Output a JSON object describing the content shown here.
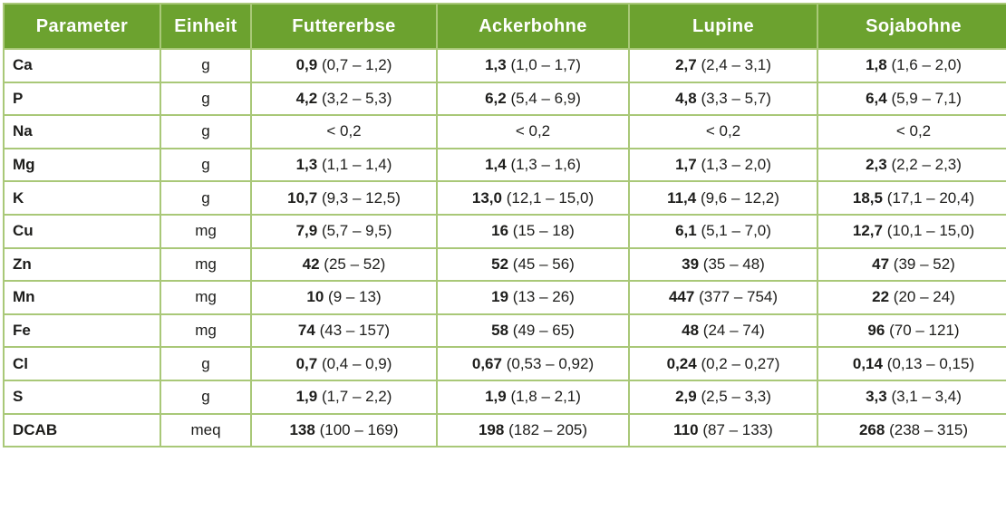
{
  "colors": {
    "header_bg": "#6ca22f",
    "header_text": "#ffffff",
    "border": "#a9c878",
    "text": "#1d1d1b",
    "background": "#ffffff"
  },
  "table": {
    "headers": [
      "Parameter",
      "Einheit",
      "Futtererbse",
      "Ackerbohne",
      "Lupine",
      "Sojabohne"
    ],
    "rows": [
      {
        "parameter": "Ca",
        "unit": "g",
        "cells": [
          {
            "bold": "0,9",
            "rest": "(0,7 – 1,2)"
          },
          {
            "bold": "1,3",
            "rest": "(1,0 – 1,7)"
          },
          {
            "bold": "2,7",
            "rest": "(2,4 – 3,1)"
          },
          {
            "bold": "1,8",
            "rest": "(1,6 – 2,0)"
          }
        ]
      },
      {
        "parameter": "P",
        "unit": "g",
        "cells": [
          {
            "bold": "4,2",
            "rest": "(3,2 – 5,3)"
          },
          {
            "bold": "6,2",
            "rest": "(5,4 – 6,9)"
          },
          {
            "bold": "4,8",
            "rest": "(3,3 – 5,7)"
          },
          {
            "bold": "6,4",
            "rest": "(5,9 – 7,1)"
          }
        ]
      },
      {
        "parameter": "Na",
        "unit": "g",
        "cells": [
          {
            "bold": "",
            "rest": "< 0,2"
          },
          {
            "bold": "",
            "rest": "< 0,2"
          },
          {
            "bold": "",
            "rest": "< 0,2"
          },
          {
            "bold": "",
            "rest": "< 0,2"
          }
        ]
      },
      {
        "parameter": "Mg",
        "unit": "g",
        "cells": [
          {
            "bold": "1,3",
            "rest": "(1,1 – 1,4)"
          },
          {
            "bold": "1,4",
            "rest": "(1,3 – 1,6)"
          },
          {
            "bold": "1,7",
            "rest": "(1,3 – 2,0)"
          },
          {
            "bold": "2,3",
            "rest": "(2,2 – 2,3)"
          }
        ]
      },
      {
        "parameter": "K",
        "unit": "g",
        "cells": [
          {
            "bold": "10,7",
            "rest": "(9,3 – 12,5)"
          },
          {
            "bold": "13,0",
            "rest": "(12,1 – 15,0)"
          },
          {
            "bold": "11,4",
            "rest": "(9,6 – 12,2)"
          },
          {
            "bold": "18,5",
            "rest": "(17,1 – 20,4)"
          }
        ]
      },
      {
        "parameter": "Cu",
        "unit": "mg",
        "cells": [
          {
            "bold": "7,9",
            "rest": "(5,7 – 9,5)"
          },
          {
            "bold": "16",
            "rest": "(15 – 18)"
          },
          {
            "bold": "6,1",
            "rest": "(5,1 – 7,0)"
          },
          {
            "bold": "12,7",
            "rest": "(10,1 – 15,0)"
          }
        ]
      },
      {
        "parameter": "Zn",
        "unit": "mg",
        "cells": [
          {
            "bold": "42",
            "rest": "(25 – 52)"
          },
          {
            "bold": "52",
            "rest": "(45 – 56)"
          },
          {
            "bold": "39",
            "rest": "(35 – 48)"
          },
          {
            "bold": "47",
            "rest": "(39 – 52)"
          }
        ]
      },
      {
        "parameter": "Mn",
        "unit": "mg",
        "cells": [
          {
            "bold": "10",
            "rest": "(9 – 13)"
          },
          {
            "bold": "19",
            "rest": "(13 – 26)"
          },
          {
            "bold": "447",
            "rest": "(377 – 754)"
          },
          {
            "bold": "22",
            "rest": "(20 – 24)"
          }
        ]
      },
      {
        "parameter": "Fe",
        "unit": "mg",
        "cells": [
          {
            "bold": "74",
            "rest": "(43 – 157)"
          },
          {
            "bold": "58",
            "rest": "(49 – 65)"
          },
          {
            "bold": "48",
            "rest": "(24 – 74)"
          },
          {
            "bold": "96",
            "rest": "(70 – 121)"
          }
        ]
      },
      {
        "parameter": "Cl",
        "unit": "g",
        "cells": [
          {
            "bold": "0,7",
            "rest": "(0,4 – 0,9)"
          },
          {
            "bold": "0,67",
            "rest": "(0,53 – 0,92)"
          },
          {
            "bold": "0,24",
            "rest": "(0,2 – 0,27)"
          },
          {
            "bold": "0,14",
            "rest": "(0,13 – 0,15)"
          }
        ]
      },
      {
        "parameter": "S",
        "unit": "g",
        "cells": [
          {
            "bold": "1,9",
            "rest": "(1,7 – 2,2)"
          },
          {
            "bold": "1,9",
            "rest": "(1,8 – 2,1)"
          },
          {
            "bold": "2,9",
            "rest": "(2,5 – 3,3)"
          },
          {
            "bold": "3,3",
            "rest": "(3,1 – 3,4)"
          }
        ]
      },
      {
        "parameter": "DCAB",
        "unit": "meq",
        "cells": [
          {
            "bold": "138",
            "rest": "(100 – 169)"
          },
          {
            "bold": "198",
            "rest": "(182 – 205)"
          },
          {
            "bold": "110",
            "rest": "(87 – 133)"
          },
          {
            "bold": "268",
            "rest": "(238 – 315)"
          }
        ]
      }
    ]
  },
  "chart_data": {
    "type": "table",
    "columns": [
      "Parameter",
      "Einheit",
      "Futtererbse",
      "Ackerbohne",
      "Lupine",
      "Sojabohne"
    ],
    "rows": [
      [
        "Ca",
        "g",
        "0,9 (0,7 – 1,2)",
        "1,3 (1,0 – 1,7)",
        "2,7 (2,4 – 3,1)",
        "1,8 (1,6 – 2,0)"
      ],
      [
        "P",
        "g",
        "4,2 (3,2 – 5,3)",
        "6,2 (5,4 – 6,9)",
        "4,8 (3,3 – 5,7)",
        "6,4 (5,9 – 7,1)"
      ],
      [
        "Na",
        "g",
        "< 0,2",
        "< 0,2",
        "< 0,2",
        "< 0,2"
      ],
      [
        "Mg",
        "g",
        "1,3 (1,1 – 1,4)",
        "1,4 (1,3 – 1,6)",
        "1,7 (1,3 – 2,0)",
        "2,3 (2,2 – 2,3)"
      ],
      [
        "K",
        "g",
        "10,7 (9,3 – 12,5)",
        "13,0 (12,1 – 15,0)",
        "11,4 (9,6 – 12,2)",
        "18,5 (17,1 – 20,4)"
      ],
      [
        "Cu",
        "mg",
        "7,9 (5,7 – 9,5)",
        "16 (15 – 18)",
        "6,1 (5,1 – 7,0)",
        "12,7 (10,1 – 15,0)"
      ],
      [
        "Zn",
        "mg",
        "42 (25 – 52)",
        "52 (45 – 56)",
        "39 (35 – 48)",
        "47 (39 – 52)"
      ],
      [
        "Mn",
        "mg",
        "10 (9 – 13)",
        "19 (13 – 26)",
        "447 (377 – 754)",
        "22 (20 – 24)"
      ],
      [
        "Fe",
        "mg",
        "74 (43 – 157)",
        "58 (49 – 65)",
        "48 (24 – 74)",
        "96 (70 – 121)"
      ],
      [
        "Cl",
        "g",
        "0,7 (0,4 – 0,9)",
        "0,67 (0,53 – 0,92)",
        "0,24 (0,2 – 0,27)",
        "0,14 (0,13 – 0,15)"
      ],
      [
        "S",
        "g",
        "1,9 (1,7 – 2,2)",
        "1,9 (1,8 – 2,1)",
        "2,9 (2,5 – 3,3)",
        "3,3 (3,1 – 3,4)"
      ],
      [
        "DCAB",
        "meq",
        "138 (100 – 169)",
        "198 (182 – 205)",
        "110 (87 – 133)",
        "268 (238 – 315)"
      ]
    ]
  }
}
